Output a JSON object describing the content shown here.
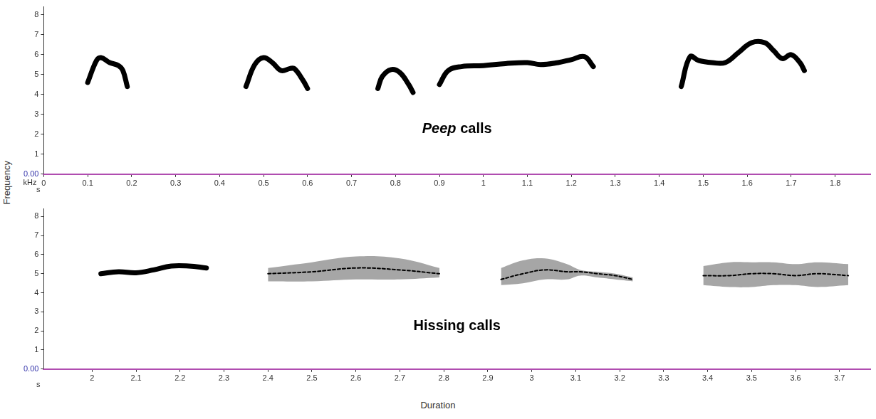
{
  "xlabel": "Duration",
  "ylabel": "Frequency",
  "chart_data": [
    {
      "type": "line",
      "annotation": "Peep calls",
      "annotation_emphasis": "Peep",
      "x_unit": "s",
      "y_unit": "kHz",
      "xlim": [
        0,
        1.88
      ],
      "xticks": [
        0,
        0.1,
        0.2,
        0.3,
        0.4,
        0.5,
        0.6,
        0.7,
        0.8,
        0.9,
        1,
        1.1,
        1.2,
        1.3,
        1.4,
        1.5,
        1.6,
        1.7,
        1.8
      ],
      "ylim": [
        0,
        8.4
      ],
      "yticks": [
        {
          "value": 0,
          "label": "0.00"
        },
        1,
        2,
        3,
        4,
        5,
        6,
        7,
        8
      ],
      "grid": false,
      "color": "#000000",
      "series": [
        {
          "x": [
            0.1,
            0.12,
            0.13,
            0.15,
            0.17,
            0.18,
            0.19
          ],
          "values": [
            4.6,
            5.7,
            5.85,
            5.6,
            5.45,
            5.2,
            4.4
          ],
          "line_style": "solid"
        },
        {
          "x": [
            0.46,
            0.48,
            0.5,
            0.52,
            0.54,
            0.56,
            0.57,
            0.59,
            0.6
          ],
          "values": [
            4.4,
            5.5,
            5.85,
            5.6,
            5.2,
            5.3,
            5.3,
            4.7,
            4.3
          ],
          "line_style": "solid"
        },
        {
          "x": [
            0.76,
            0.77,
            0.79,
            0.81,
            0.83,
            0.84
          ],
          "values": [
            4.3,
            4.9,
            5.25,
            5.1,
            4.5,
            4.1
          ],
          "line_style": "solid"
        },
        {
          "x": [
            0.9,
            0.92,
            0.95,
            1.0,
            1.05,
            1.1,
            1.13,
            1.17,
            1.2,
            1.23,
            1.25
          ],
          "values": [
            4.5,
            5.2,
            5.4,
            5.45,
            5.55,
            5.6,
            5.5,
            5.6,
            5.75,
            5.9,
            5.4
          ],
          "line_style": "solid"
        },
        {
          "x": [
            1.45,
            1.47,
            1.49,
            1.52,
            1.55,
            1.58,
            1.61,
            1.64,
            1.66,
            1.68,
            1.7,
            1.72,
            1.73
          ],
          "values": [
            4.4,
            5.9,
            5.7,
            5.6,
            5.6,
            6.1,
            6.6,
            6.6,
            6.2,
            5.8,
            6.0,
            5.6,
            5.2
          ],
          "line_style": "solid"
        }
      ]
    },
    {
      "type": "line",
      "annotation": "Hissing calls",
      "x_unit": "s",
      "xlim": [
        1.89,
        3.77
      ],
      "xticks": [
        2,
        2.1,
        2.2,
        2.3,
        2.4,
        2.5,
        2.6,
        2.7,
        2.8,
        2.9,
        3,
        3.1,
        3.2,
        3.3,
        3.4,
        3.5,
        3.6,
        3.7
      ],
      "ylim": [
        0,
        8.4
      ],
      "yticks": [
        {
          "value": 0,
          "label": "0.00"
        },
        1,
        2,
        3,
        4,
        5,
        6,
        7,
        8
      ],
      "grid": false,
      "color": "#000000",
      "series": [
        {
          "x": [
            2.02,
            2.06,
            2.1,
            2.14,
            2.18,
            2.22,
            2.26
          ],
          "values": [
            5.0,
            5.1,
            5.05,
            5.2,
            5.4,
            5.4,
            5.3
          ],
          "line_style": "solid"
        },
        {
          "x": [
            2.4,
            2.5,
            2.6,
            2.7,
            2.79
          ],
          "values": [
            5.0,
            5.1,
            5.3,
            5.2,
            5.0
          ],
          "low": [
            4.6,
            4.6,
            4.7,
            4.7,
            4.8
          ],
          "high": [
            5.3,
            5.6,
            5.9,
            5.8,
            5.3
          ],
          "line_style": "dashed"
        },
        {
          "x": [
            2.93,
            2.98,
            3.03,
            3.08,
            3.11,
            3.15,
            3.19,
            3.23
          ],
          "values": [
            4.7,
            5.0,
            5.2,
            5.1,
            5.1,
            5.0,
            4.9,
            4.7
          ],
          "low": [
            4.4,
            4.5,
            4.7,
            4.7,
            4.9,
            4.8,
            4.7,
            4.6
          ],
          "high": [
            5.3,
            5.7,
            5.8,
            5.5,
            5.2,
            5.1,
            5.0,
            4.8
          ],
          "line_style": "dashed"
        },
        {
          "x": [
            3.39,
            3.45,
            3.5,
            3.55,
            3.6,
            3.65,
            3.72
          ],
          "values": [
            4.9,
            4.9,
            5.0,
            5.0,
            4.9,
            5.0,
            4.9
          ],
          "low": [
            4.4,
            4.3,
            4.3,
            4.4,
            4.4,
            4.3,
            4.4
          ],
          "high": [
            5.4,
            5.6,
            5.6,
            5.6,
            5.5,
            5.6,
            5.5
          ],
          "line_style": "dashed"
        }
      ]
    }
  ]
}
